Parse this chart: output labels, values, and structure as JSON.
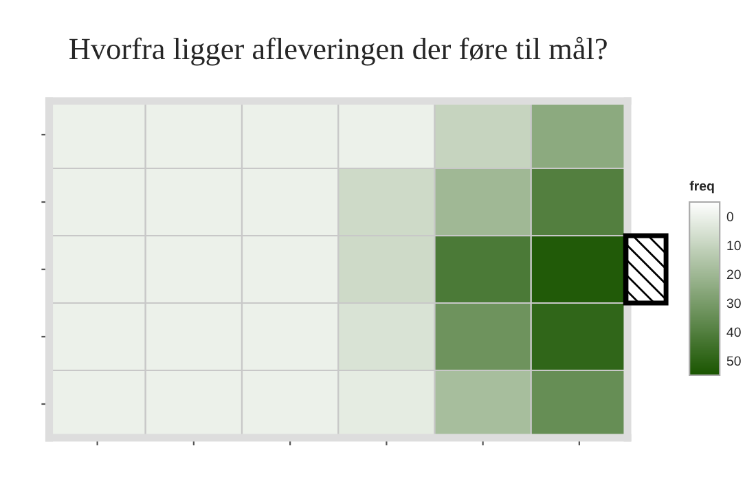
{
  "chart_data": {
    "type": "heatmap",
    "title": "Hvorfra ligger afleveringen der føre til mål?",
    "categories": [
      null,
      null,
      null,
      null,
      null,
      null
    ],
    "y_categories": [
      null,
      null,
      null,
      null,
      null
    ],
    "cells": [
      [
        0,
        0,
        0,
        0,
        10,
        25
      ],
      [
        0,
        0,
        0,
        8,
        20,
        40
      ],
      [
        0,
        0,
        0,
        8,
        42,
        53
      ],
      [
        0,
        0,
        0,
        5,
        33,
        49
      ],
      [
        0,
        0,
        0,
        2,
        18,
        35
      ]
    ],
    "clabel": "freq",
    "clim": [
      -5,
      55
    ],
    "cticks": [
      0,
      10,
      20,
      30,
      40,
      50
    ]
  }
}
